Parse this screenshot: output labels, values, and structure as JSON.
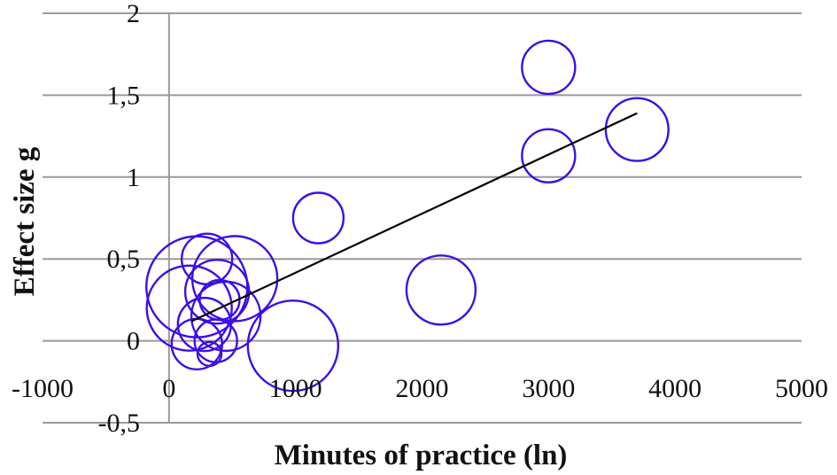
{
  "chart_data": {
    "type": "scatter",
    "xlabel": "Minutes of practice (ln)",
    "ylabel": "Effect size g",
    "xlim": [
      -1000,
      5000
    ],
    "ylim": [
      -0.5,
      2
    ],
    "x_ticks": [
      "-1000",
      "0",
      "1000",
      "2000",
      "3000",
      "4000",
      "5000"
    ],
    "y_ticks": [
      "2",
      "1,5",
      "1",
      "0,5",
      "0",
      "-0,5"
    ],
    "grid": "horizontal",
    "bubble_color": "#3d0ee6",
    "trendline_color": "#000000",
    "series": [
      {
        "points": [
          {
            "x": 3000,
            "y": 1.67,
            "size": 1.0
          },
          {
            "x": 3700,
            "y": 1.29,
            "size": 1.18
          },
          {
            "x": 3000,
            "y": 1.13,
            "size": 1.0
          },
          {
            "x": 1180,
            "y": 0.75,
            "size": 0.95
          },
          {
            "x": 2150,
            "y": 0.31,
            "size": 1.3
          },
          {
            "x": 980,
            "y": -0.03,
            "size": 1.7
          },
          {
            "x": 300,
            "y": 0.5,
            "size": 0.95
          },
          {
            "x": 520,
            "y": 0.38,
            "size": 1.6
          },
          {
            "x": 220,
            "y": 0.33,
            "size": 1.9
          },
          {
            "x": 380,
            "y": 0.3,
            "size": 1.2
          },
          {
            "x": 400,
            "y": 0.25,
            "size": 0.75
          },
          {
            "x": 160,
            "y": 0.2,
            "size": 1.6
          },
          {
            "x": 450,
            "y": 0.15,
            "size": 1.3
          },
          {
            "x": 280,
            "y": 0.1,
            "size": 1.0
          },
          {
            "x": 370,
            "y": 0.0,
            "size": 0.8
          },
          {
            "x": 220,
            "y": -0.02,
            "size": 0.95
          },
          {
            "x": 320,
            "y": -0.08,
            "size": 0.45
          }
        ]
      }
    ],
    "trendline": {
      "x": [
        180,
        3700
      ],
      "y": [
        0.12,
        1.39
      ]
    }
  }
}
